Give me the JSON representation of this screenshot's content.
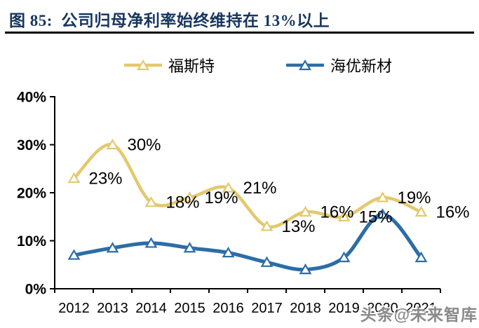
{
  "header": {
    "figure_label": "图 85:",
    "title": "图 85:  公司归母净利率始终维持在 13%以上"
  },
  "legend": {
    "items": [
      {
        "label": "福斯特"
      },
      {
        "label": "海优新材"
      }
    ]
  },
  "watermark": {
    "text": "头条@未来智库"
  },
  "colors": {
    "title_navy": "#17365D",
    "rule_black": "#000000",
    "foster_yellow": "#E3C96F",
    "haiyou_blue": "#2C6DA6",
    "axis_black": "#000000",
    "watermark_gray": "#8A8A8A"
  },
  "chart_data": {
    "type": "line",
    "title": "公司归母净利率始终维持在13%以上",
    "categories": [
      "2012",
      "2013",
      "2014",
      "2015",
      "2016",
      "2017",
      "2018",
      "2019",
      "2020",
      "2021"
    ],
    "series": [
      {
        "name": "福斯特",
        "color": "#E3C96F",
        "values": [
          23,
          30,
          18,
          19,
          21,
          13,
          16,
          15,
          19,
          16
        ],
        "point_labels": [
          "23%",
          "30%",
          "18%",
          "19%",
          "21%",
          "13%",
          "16%",
          "15%",
          "19%",
          "16%"
        ]
      },
      {
        "name": "海优新材",
        "color": "#2C6DA6",
        "values": [
          7,
          8.5,
          9.5,
          8.5,
          7.5,
          5.5,
          4,
          6.5,
          15.5,
          6.5
        ],
        "point_labels": []
      }
    ],
    "xlabel": "",
    "ylabel": "",
    "ylim": [
      0,
      40
    ],
    "yticks": [
      {
        "value": 0,
        "label": "0%"
      },
      {
        "value": 10,
        "label": "10%"
      },
      {
        "value": 20,
        "label": "20%"
      },
      {
        "value": 30,
        "label": "30%"
      },
      {
        "value": 40,
        "label": "40%"
      }
    ],
    "grid": false,
    "legend_position": "top",
    "line_style": "smooth",
    "marker": "hollow-triangle-up"
  }
}
